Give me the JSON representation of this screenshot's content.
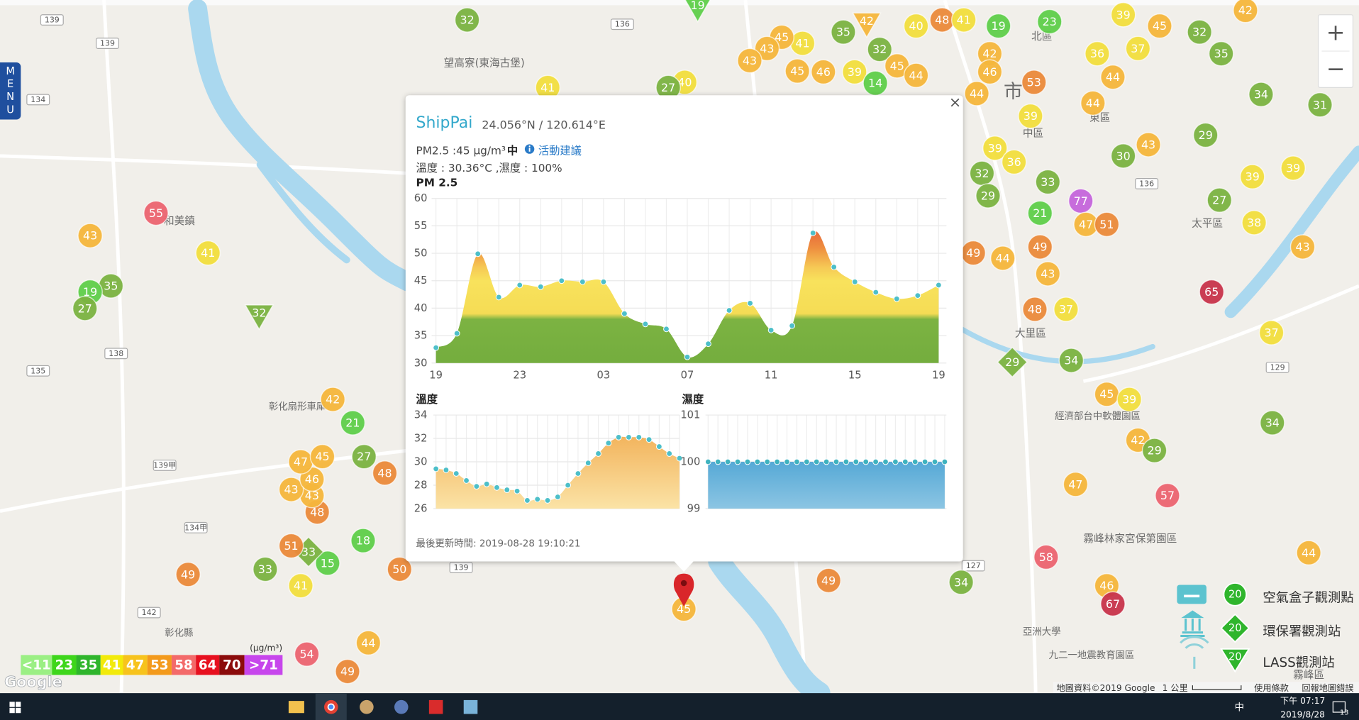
{
  "menu": "MENU",
  "zoom": {
    "in": "+",
    "out": "−"
  },
  "map": {
    "markers": [
      {
        "value": 32,
        "color": "#7cb342"
      },
      {
        "value": 19,
        "color": "#5fcf4a"
      },
      {
        "value": 42,
        "color": "#f6b73c"
      },
      {
        "value": 48,
        "color": "#eb8a3b"
      },
      {
        "value": 40,
        "color": "#f3df3e"
      },
      {
        "value": 41,
        "color": "#f3df3e"
      },
      {
        "value": 19,
        "color": "#5fcf4a"
      },
      {
        "value": 23,
        "color": "#5fcf4a"
      },
      {
        "value": 39,
        "color": "#f3df3e"
      },
      {
        "value": 45,
        "color": "#f6b73c"
      },
      {
        "value": 32,
        "color": "#7cb342"
      },
      {
        "value": 42,
        "color": "#f6b73c"
      },
      {
        "value": 35,
        "color": "#7cb342"
      },
      {
        "value": 32,
        "color": "#7cb342"
      },
      {
        "value": 45,
        "color": "#f6b73c"
      },
      {
        "value": 44,
        "color": "#f6b73c"
      },
      {
        "value": 41,
        "color": "#f3df3e"
      },
      {
        "value": 45,
        "color": "#f6b73c"
      },
      {
        "value": 43,
        "color": "#f6b73c"
      },
      {
        "value": 43,
        "color": "#f6b73c"
      },
      {
        "value": 45,
        "color": "#f6b73c"
      },
      {
        "value": 46,
        "color": "#f6b73c"
      },
      {
        "value": 39,
        "color": "#f3df3e"
      },
      {
        "value": 14,
        "color": "#5fcf4a"
      },
      {
        "value": 42,
        "color": "#f6b73c"
      },
      {
        "value": 46,
        "color": "#f6b73c"
      },
      {
        "value": 44,
        "color": "#f6b73c"
      },
      {
        "value": 53,
        "color": "#eb8a3b"
      },
      {
        "value": 39,
        "color": "#f3df3e"
      },
      {
        "value": 36,
        "color": "#f3df3e"
      },
      {
        "value": 37,
        "color": "#f3df3e"
      },
      {
        "value": 44,
        "color": "#f6b73c"
      },
      {
        "value": 44,
        "color": "#f6b73c"
      },
      {
        "value": 35,
        "color": "#7cb342"
      },
      {
        "value": 34,
        "color": "#7cb342"
      },
      {
        "value": 31,
        "color": "#7cb342"
      },
      {
        "value": 29,
        "color": "#7cb342"
      },
      {
        "value": 43,
        "color": "#f6b73c"
      },
      {
        "value": 30,
        "color": "#7cb342"
      },
      {
        "value": 39,
        "color": "#f3df3e"
      },
      {
        "value": 39,
        "color": "#f3df3e"
      },
      {
        "value": 27,
        "color": "#7cb342"
      },
      {
        "value": 38,
        "color": "#f3df3e"
      },
      {
        "value": 43,
        "color": "#f6b73c"
      },
      {
        "value": 65,
        "color": "#c8344b"
      },
      {
        "value": 37,
        "color": "#f3df3e"
      },
      {
        "value": 34,
        "color": "#7cb342"
      },
      {
        "value": 57,
        "color": "#ec6470"
      },
      {
        "value": 44,
        "color": "#f6b73c"
      },
      {
        "value": 32,
        "color": "#7cb342"
      },
      {
        "value": 39,
        "color": "#f3df3e"
      },
      {
        "value": 36,
        "color": "#f3df3e"
      },
      {
        "value": 29,
        "color": "#7cb342"
      },
      {
        "value": 33,
        "color": "#7cb342"
      },
      {
        "value": 77,
        "color": "#c565dc"
      },
      {
        "value": 21,
        "color": "#5fcf4a"
      },
      {
        "value": 47,
        "color": "#f6b73c"
      },
      {
        "value": 51,
        "color": "#eb8a3b"
      },
      {
        "value": 49,
        "color": "#eb8a3b"
      },
      {
        "value": 44,
        "color": "#f6b73c"
      },
      {
        "value": 43,
        "color": "#f6b73c"
      },
      {
        "value": 49,
        "color": "#eb8a3b"
      },
      {
        "value": 48,
        "color": "#eb8a3b"
      },
      {
        "value": 37,
        "color": "#f3df3e"
      },
      {
        "value": 29,
        "color": "#7cb342"
      },
      {
        "value": 34,
        "color": "#7cb342"
      },
      {
        "value": 45,
        "color": "#f6b73c"
      },
      {
        "value": 39,
        "color": "#f3df3e"
      },
      {
        "value": 42,
        "color": "#f6b73c"
      },
      {
        "value": 29,
        "color": "#7cb342"
      },
      {
        "value": 47,
        "color": "#f6b73c"
      },
      {
        "value": 58,
        "color": "#ec6470"
      },
      {
        "value": 46,
        "color": "#f6b73c"
      },
      {
        "value": 67,
        "color": "#c8344b"
      },
      {
        "value": 34,
        "color": "#7cb342"
      },
      {
        "value": 49,
        "color": "#eb8a3b"
      },
      {
        "value": 45,
        "color": "#f6b73c"
      },
      {
        "value": 40,
        "color": "#f3df3e"
      },
      {
        "value": 27,
        "color": "#7cb342"
      },
      {
        "value": 41,
        "color": "#f3df3e"
      },
      {
        "value": 50,
        "color": "#eb8a3b"
      },
      {
        "value": 18,
        "color": "#5fcf4a"
      },
      {
        "value": 15,
        "color": "#5fcf4a"
      },
      {
        "value": 33,
        "color": "#7cb342"
      },
      {
        "value": 51,
        "color": "#eb8a3b"
      },
      {
        "value": 33,
        "color": "#7cb342"
      },
      {
        "value": 49,
        "color": "#eb8a3b"
      },
      {
        "value": 41,
        "color": "#f3df3e"
      },
      {
        "value": 44,
        "color": "#f6b73c"
      },
      {
        "value": 54,
        "color": "#ec6470"
      },
      {
        "value": 49,
        "color": "#eb8a3b"
      },
      {
        "value": 48,
        "color": "#eb8a3b"
      },
      {
        "value": 43,
        "color": "#f6b73c"
      },
      {
        "value": 43,
        "color": "#f6b73c"
      },
      {
        "value": 46,
        "color": "#f6b73c"
      },
      {
        "value": 47,
        "color": "#f6b73c"
      },
      {
        "value": 45,
        "color": "#f6b73c"
      },
      {
        "value": 27,
        "color": "#7cb342"
      },
      {
        "value": 21,
        "color": "#5fcf4a"
      },
      {
        "value": 48,
        "color": "#eb8a3b"
      },
      {
        "value": 42,
        "color": "#f6b73c"
      },
      {
        "value": 55,
        "color": "#ec6470"
      },
      {
        "value": 43,
        "color": "#f6b73c"
      },
      {
        "value": 41,
        "color": "#f3df3e"
      },
      {
        "value": 35,
        "color": "#7cb342"
      },
      {
        "value": 19,
        "color": "#5fcf4a"
      },
      {
        "value": 27,
        "color": "#7cb342"
      },
      {
        "value": 32,
        "color": "#7cb342"
      }
    ],
    "labels": [
      "望高寮(東海古堡)",
      "和美鎮",
      "北區",
      "中區",
      "東區",
      "太平區",
      "大里區",
      "彰化縣",
      "彰化扇形車庫",
      "經濟部台中軟體園區",
      "霧峰林家宮保第園區",
      "亞洲大學",
      "九二一地震教育園區",
      "霧峰區",
      "市"
    ],
    "roads": [
      "139",
      "139",
      "136",
      "134",
      "138",
      "135",
      "142",
      "134甲",
      "139甲",
      "139",
      "127",
      "129",
      "136"
    ]
  },
  "legend": {
    "unit": "(μg/m³)",
    "levels": [
      {
        "label": "<11",
        "color": "#9bef84"
      },
      {
        "label": "23",
        "color": "#3ed61b"
      },
      {
        "label": "35",
        "color": "#2fb52c"
      },
      {
        "label": "41",
        "color": "#f2ea0a"
      },
      {
        "label": "47",
        "color": "#f7c31d"
      },
      {
        "label": "53",
        "color": "#f39a1c"
      },
      {
        "label": "58",
        "color": "#f36a6a"
      },
      {
        "label": "64",
        "color": "#e7101f"
      },
      {
        "label": "70",
        "color": "#8b0b0b"
      },
      {
        "label": ">71",
        "color": "#c746ec"
      }
    ]
  },
  "stations": [
    {
      "icon": "20",
      "label": "空氣盒子觀測點"
    },
    {
      "icon": "20",
      "label": "環保署觀測站"
    },
    {
      "icon": "20",
      "label": "LASS觀測站"
    }
  ],
  "popup": {
    "name": "ShipPai",
    "coords": "24.056°N / 120.614°E",
    "close": "×",
    "pm_line": "PM2.5 :45 μg/m³",
    "level": "中",
    "advice": "活動建議",
    "weather": "溫度 : 30.36°C ,濕度 : 100%",
    "updated": "最後更新時間: 2019-08-28 19:10:21",
    "charts": [
      {
        "type": "area",
        "title": "PM 2.5",
        "categories": [
          "19",
          null,
          null,
          null,
          "23",
          null,
          null,
          null,
          "03",
          null,
          null,
          null,
          "07",
          null,
          null,
          null,
          "11",
          null,
          null,
          null,
          "15",
          null,
          null,
          null,
          "19"
        ],
        "values": [
          32.8,
          35.4,
          49.9,
          42.0,
          44.2,
          43.9,
          45.0,
          44.8,
          44.8,
          39.0,
          37.1,
          36.2,
          31.1,
          33.5,
          39.6,
          40.9,
          36.0,
          36.8,
          53.7,
          47.5,
          44.8,
          42.9,
          41.7,
          42.3,
          44.2
        ],
        "ylim": [
          30,
          60
        ],
        "yticks": [
          30,
          35,
          40,
          45,
          50,
          55,
          60
        ],
        "point_color": "#4dbfc9"
      },
      {
        "type": "area",
        "title": "溫度",
        "values": [
          29.4,
          29.3,
          29.0,
          28.4,
          27.9,
          28.1,
          27.8,
          27.6,
          27.5,
          26.7,
          26.8,
          26.7,
          27.0,
          28.0,
          29.0,
          29.9,
          30.7,
          31.6,
          32.1,
          32.1,
          32.1,
          31.9,
          31.3,
          30.7,
          30.3
        ],
        "ylim": [
          26,
          34
        ],
        "yticks": [
          26,
          28,
          30,
          32,
          34
        ],
        "point_color": "#4dbfc9"
      },
      {
        "type": "area",
        "title": "濕度",
        "values": [
          100,
          100,
          100,
          100,
          100,
          100,
          100,
          100,
          100,
          100,
          100,
          100,
          100,
          100,
          100,
          100,
          100,
          100,
          100,
          100,
          100,
          100,
          100,
          100,
          100
        ],
        "ylim": [
          99,
          101
        ],
        "yticks": [
          99,
          100,
          101
        ],
        "point_color": "#3fb3bf"
      }
    ]
  },
  "footer": {
    "logo": "Google",
    "attribution": "地圖資料©2019 Google",
    "scale": "1 公里",
    "terms": "使用條款",
    "report": "回報地圖錯誤"
  },
  "taskbar": {
    "ime": "中",
    "time": "下午 07:17",
    "date": "2019/8/28",
    "badge": "13"
  }
}
